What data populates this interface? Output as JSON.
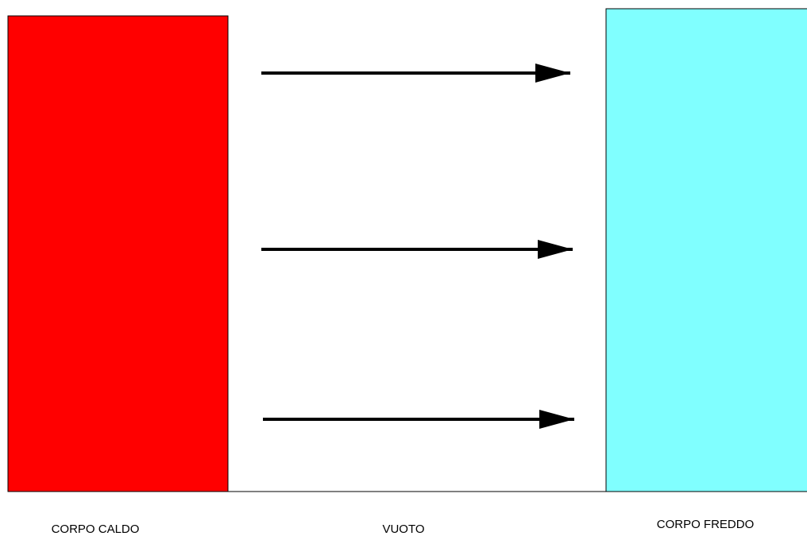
{
  "hot_body": {
    "label": "CORPO CALDO",
    "color": "#ff0000"
  },
  "vacuum": {
    "label": "VUOTO"
  },
  "cold_body": {
    "label": "CORPO FREDDO",
    "color": "#80ffff"
  },
  "arrows": {
    "count": 3,
    "color": "#000000"
  }
}
